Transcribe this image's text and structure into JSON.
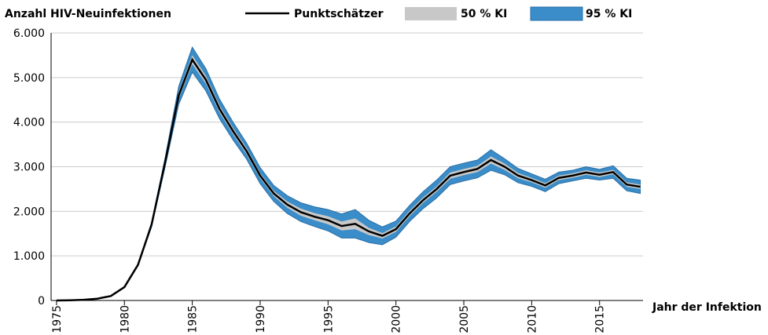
{
  "chart_data": {
    "type": "line",
    "title": "Anzahl HIV-Neuinfektionen",
    "x_label": "Jahr der Infektion",
    "x": [
      1975,
      1976,
      1977,
      1978,
      1979,
      1980,
      1981,
      1982,
      1983,
      1984,
      1985,
      1986,
      1987,
      1988,
      1989,
      1990,
      1991,
      1992,
      1993,
      1994,
      1995,
      1996,
      1997,
      1998,
      1999,
      2000,
      2001,
      2002,
      2003,
      2004,
      2005,
      2006,
      2007,
      2008,
      2009,
      2010,
      2011,
      2012,
      2013,
      2014,
      2015,
      2016,
      2017,
      2018
    ],
    "xlim": [
      1974.6,
      2018.2
    ],
    "xticks": [
      1975,
      1980,
      1985,
      1990,
      1995,
      2000,
      2005,
      2010,
      2015
    ],
    "ylim": [
      0,
      6000
    ],
    "yticks": [
      0,
      {
        "value": 1000,
        "label": "1.000"
      },
      {
        "value": 2000,
        "label": "2.000"
      },
      {
        "value": 3000,
        "label": "3.000"
      },
      {
        "value": 4000,
        "label": "4.000"
      },
      {
        "value": 5000,
        "label": "5.000"
      },
      {
        "value": 6000,
        "label": "6.000"
      }
    ],
    "grid": true,
    "series": [
      {
        "name": "Punktschätzer",
        "color": "#000000",
        "values": [
          0,
          5,
          15,
          40,
          100,
          300,
          800,
          1700,
          3100,
          4600,
          5400,
          4950,
          4300,
          3800,
          3350,
          2800,
          2400,
          2150,
          1980,
          1880,
          1800,
          1670,
          1720,
          1550,
          1450,
          1600,
          1950,
          2250,
          2500,
          2800,
          2880,
          2950,
          3150,
          3000,
          2800,
          2700,
          2580,
          2750,
          2800,
          2870,
          2820,
          2880,
          2600,
          2550
        ]
      }
    ],
    "bands": [
      {
        "name": "50 % KI",
        "color": "#c8c8c8",
        "lower": [
          0,
          5,
          15,
          40,
          100,
          300,
          795,
          1680,
          3060,
          4520,
          5300,
          4860,
          4220,
          3730,
          3280,
          2740,
          2340,
          2080,
          1900,
          1800,
          1710,
          1570,
          1600,
          1470,
          1390,
          1540,
          1890,
          2190,
          2440,
          2730,
          2810,
          2880,
          3070,
          2930,
          2740,
          2650,
          2530,
          2700,
          2750,
          2820,
          2770,
          2830,
          2550,
          2500
        ],
        "upper": [
          0,
          5,
          15,
          40,
          100,
          300,
          805,
          1720,
          3140,
          4680,
          5500,
          5040,
          4380,
          3870,
          3420,
          2860,
          2460,
          2220,
          2060,
          1960,
          1890,
          1770,
          1840,
          1630,
          1510,
          1660,
          2010,
          2310,
          2560,
          2870,
          2950,
          3020,
          3230,
          3070,
          2860,
          2750,
          2630,
          2800,
          2850,
          2920,
          2870,
          2930,
          2650,
          2600
        ]
      },
      {
        "name": "95 % KI",
        "color": "#3a8dc8",
        "lower": [
          0,
          5,
          15,
          40,
          100,
          300,
          790,
          1650,
          3000,
          4400,
          5120,
          4700,
          4080,
          3600,
          3170,
          2620,
          2220,
          1950,
          1770,
          1660,
          1560,
          1400,
          1400,
          1300,
          1250,
          1420,
          1770,
          2060,
          2300,
          2600,
          2680,
          2750,
          2920,
          2820,
          2640,
          2560,
          2440,
          2620,
          2680,
          2740,
          2700,
          2740,
          2460,
          2400
        ],
        "upper": [
          0,
          5,
          15,
          40,
          100,
          300,
          810,
          1750,
          3200,
          4800,
          5680,
          5200,
          4520,
          4000,
          3530,
          2980,
          2580,
          2350,
          2190,
          2100,
          2040,
          1940,
          2040,
          1800,
          1650,
          1780,
          2130,
          2440,
          2700,
          3000,
          3080,
          3150,
          3380,
          3180,
          2960,
          2840,
          2720,
          2880,
          2920,
          3000,
          2940,
          3020,
          2740,
          2700
        ]
      }
    ]
  }
}
